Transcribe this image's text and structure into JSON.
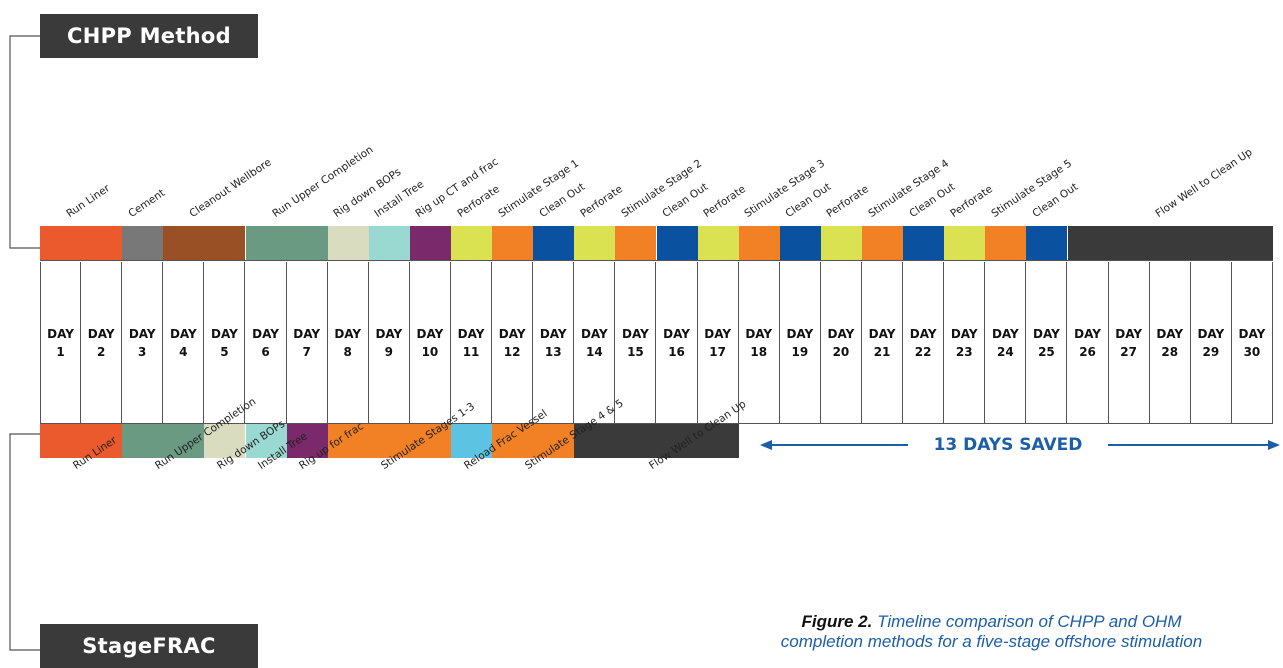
{
  "chpp": {
    "title": "CHPP Method",
    "activities": [
      {
        "label": "Run Liner",
        "start": 1,
        "end": 2,
        "color": "#ea5a2c"
      },
      {
        "label": "Cement",
        "start": 3,
        "end": 3,
        "color": "#787878"
      },
      {
        "label": "Cleanout Wellbore",
        "start": 4,
        "end": 5,
        "color": "#985024"
      },
      {
        "label": "Run Upper Completion",
        "start": 6,
        "end": 7,
        "color": "#6a9a82"
      },
      {
        "label": "Rig down BOPs",
        "start": 8,
        "end": 8,
        "color": "#dadcc0"
      },
      {
        "label": "Install Tree",
        "start": 9,
        "end": 9,
        "color": "#9ad8d2"
      },
      {
        "label": "Rig up CT and frac",
        "start": 10,
        "end": 10,
        "color": "#7a2a6a"
      },
      {
        "label": "Perforate",
        "start": 11,
        "end": 11,
        "color": "#dae252"
      },
      {
        "label": "Stimulate Stage 1",
        "start": 12,
        "end": 12,
        "color": "#f28024"
      },
      {
        "label": "Clean Out",
        "start": 13,
        "end": 13,
        "color": "#0a52a0"
      },
      {
        "label": "Perforate",
        "start": 14,
        "end": 14,
        "color": "#dae252"
      },
      {
        "label": "Stimulate Stage 2",
        "start": 15,
        "end": 15,
        "color": "#f28024"
      },
      {
        "label": "Clean Out",
        "start": 16,
        "end": 16,
        "color": "#0a52a0"
      },
      {
        "label": "Perforate",
        "start": 17,
        "end": 17,
        "color": "#dae252"
      },
      {
        "label": "Stimulate Stage 3",
        "start": 18,
        "end": 18,
        "color": "#f28024"
      },
      {
        "label": "Clean Out",
        "start": 19,
        "end": 19,
        "color": "#0a52a0"
      },
      {
        "label": "Perforate",
        "start": 20,
        "end": 20,
        "color": "#dae252"
      },
      {
        "label": "Stimulate Stage 4",
        "start": 21,
        "end": 21,
        "color": "#f28024"
      },
      {
        "label": "Clean Out",
        "start": 22,
        "end": 22,
        "color": "#0a52a0"
      },
      {
        "label": "Perforate",
        "start": 23,
        "end": 23,
        "color": "#dae252"
      },
      {
        "label": "Stimulate Stage 5",
        "start": 24,
        "end": 24,
        "color": "#f28024"
      },
      {
        "label": "Clean Out",
        "start": 25,
        "end": 25,
        "color": "#0a52a0"
      },
      {
        "label": "Flow Well to Clean Up",
        "start": 26,
        "end": 30,
        "color": "#3a3a3a"
      }
    ]
  },
  "stagefrac": {
    "title": "StageFRAC",
    "activities": [
      {
        "label": "Run Liner",
        "start": 1,
        "end": 2,
        "color": "#ea5a2c"
      },
      {
        "label": "Run Upper Completion",
        "start": 3,
        "end": 4,
        "color": "#6a9a82"
      },
      {
        "label": "Rig down BOPs",
        "start": 5,
        "end": 5,
        "color": "#dadcc0"
      },
      {
        "label": "Install Tree",
        "start": 6,
        "end": 6,
        "color": "#9ad8d2"
      },
      {
        "label": "Rig up for frac",
        "start": 7,
        "end": 7,
        "color": "#7a2a6a"
      },
      {
        "label": "Stimulate Stages 1-3",
        "start": 8,
        "end": 10,
        "color": "#f28024"
      },
      {
        "label": "Reload Frac Vessel",
        "start": 11,
        "end": 11,
        "color": "#5cc4e2"
      },
      {
        "label": "Stimulate Stage 4 & 5",
        "start": 12,
        "end": 13,
        "color": "#f28024"
      },
      {
        "label": "Flow Well to Clean Up",
        "start": 14,
        "end": 17,
        "color": "#3a3a3a"
      }
    ]
  },
  "days": [
    "DAY\n1",
    "DAY\n2",
    "DAY\n3",
    "DAY\n4",
    "DAY\n5",
    "DAY\n6",
    "DAY\n7",
    "DAY\n8",
    "DAY\n9",
    "DAY\n10",
    "DAY\n11",
    "DAY\n12",
    "DAY\n13",
    "DAY\n14",
    "DAY\n15",
    "DAY\n16",
    "DAY\n17",
    "DAY\n18",
    "DAY\n19",
    "DAY\n20",
    "DAY\n21",
    "DAY\n22",
    "DAY\n23",
    "DAY\n24",
    "DAY\n25",
    "DAY\n26",
    "DAY\n27",
    "DAY\n28",
    "DAY\n29",
    "DAY\n30"
  ],
  "saved_label": "13 DAYS SAVED",
  "caption": {
    "figure": "Figure 2.",
    "line1": "Timeline comparison of CHPP and OHM",
    "line2": "completion methods for a five-stage offshore stimulation"
  },
  "colors": {
    "accent": "#1c5ea8",
    "badge": "#3a3a3a"
  }
}
